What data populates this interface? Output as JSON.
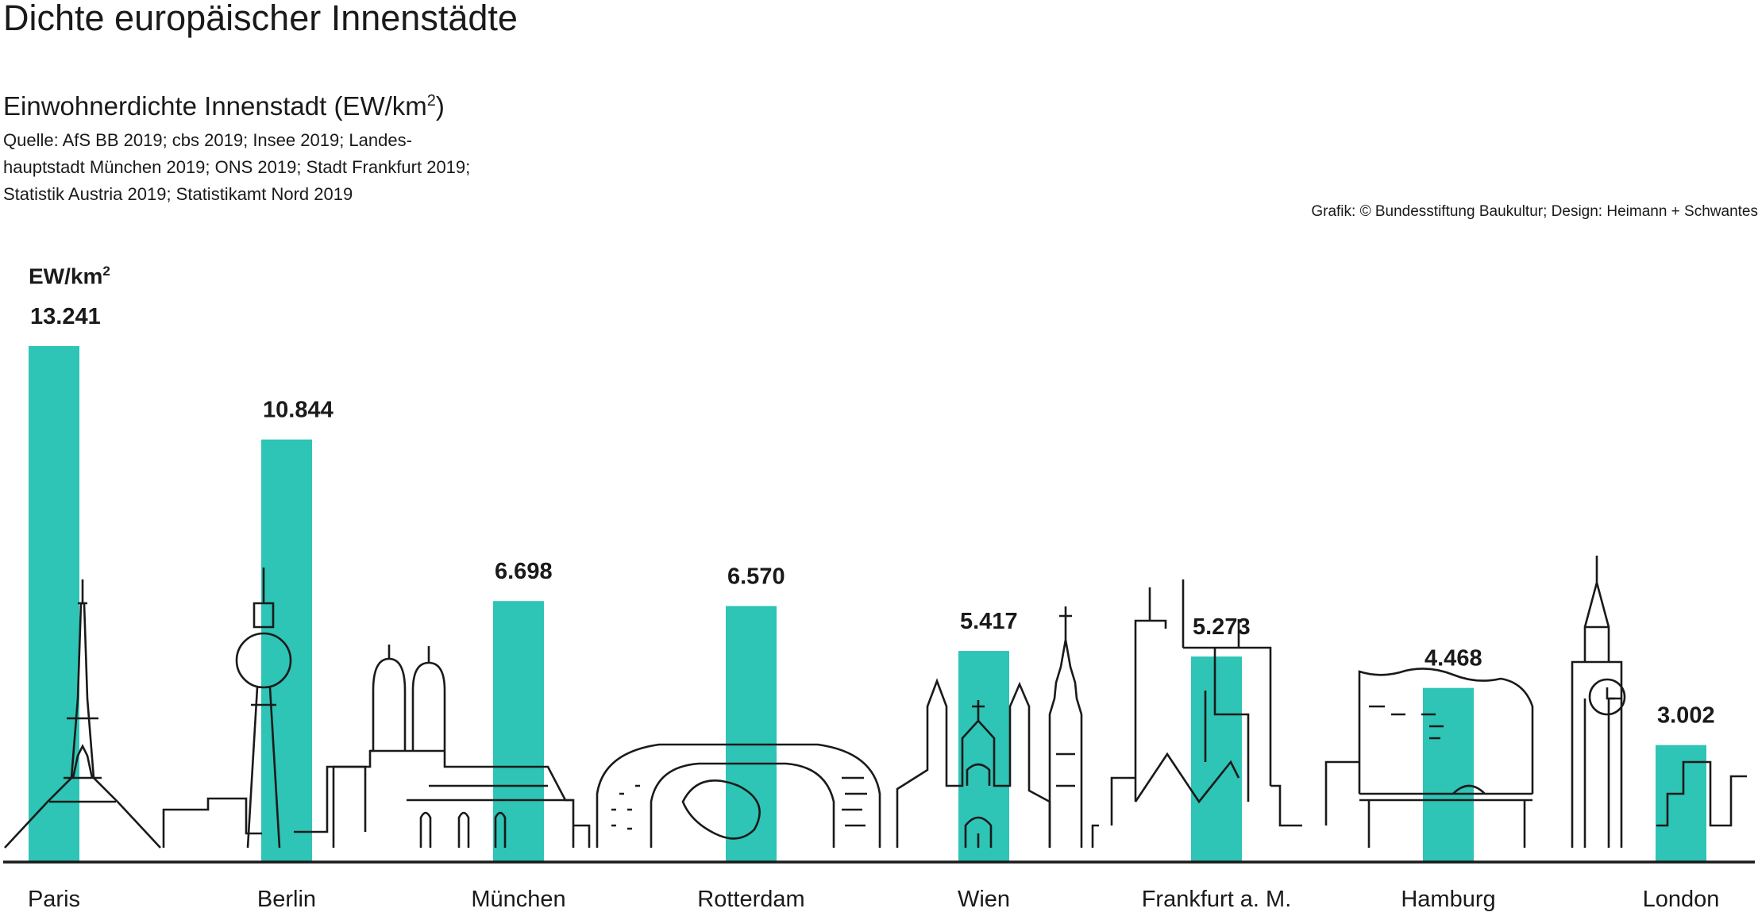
{
  "header": {
    "title": "Dichte europäischer Innenstädte",
    "subtitle_main": "Einwohnerdichte Innenstadt (EW/km",
    "subtitle_sup": "2",
    "subtitle_end": ")",
    "source": "Quelle: AfS BB 2019; cbs 2019; Insee 2019; Landes-hauptstadt München 2019; ONS 2019; Stadt Frankfurt 2019; Statistik Austria 2019; Statistikamt Nord 2019",
    "credit": "Grafik: © Bundesstiftung Baukultur; Design: Heimann + Schwantes"
  },
  "unit_label": {
    "base": "EW/km",
    "sup": "2"
  },
  "colors": {
    "bar": "#2ec4b6",
    "ink": "#1a1a1a",
    "background": "#ffffff"
  },
  "chart_data": {
    "type": "bar",
    "categories": [
      "Paris",
      "Berlin",
      "München",
      "Rotterdam",
      "Wien",
      "Frankfurt a. M.",
      "Hamburg",
      "London"
    ],
    "values": [
      13241,
      10844,
      6698,
      6570,
      5417,
      5273,
      4468,
      3002
    ],
    "value_labels": [
      "13.241",
      "10.844",
      "6.698",
      "6.570",
      "5.417",
      "5.273",
      "4.468",
      "3.002"
    ],
    "ylim": [
      0,
      13241
    ],
    "grid": false,
    "legend": "none",
    "decoration": "city skyline line drawings behind bars"
  }
}
